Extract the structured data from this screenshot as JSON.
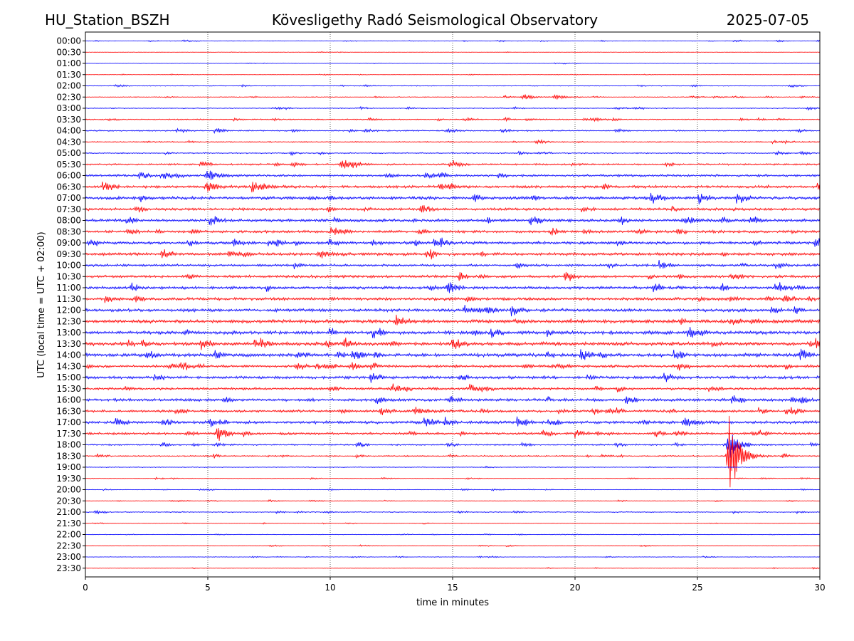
{
  "header": {
    "station": "HU_Station_BSZH",
    "observatory": "Kövesligethy Radó Seismological Observatory",
    "date": "2025-07-05"
  },
  "chart_data": {
    "type": "line",
    "subtype": "helicorder",
    "xlabel": "time in minutes",
    "ylabel": "UTC (local time = UTC + 02:00)",
    "xlim": [
      0,
      30
    ],
    "x_ticks": [
      "0",
      "5",
      "10",
      "15",
      "20",
      "25",
      "30"
    ],
    "grid": "vertical dotted lines every 5 minutes",
    "row_labels": [
      "00:00",
      "00:30",
      "01:00",
      "01:30",
      "02:00",
      "02:30",
      "03:00",
      "03:30",
      "04:00",
      "04:30",
      "05:00",
      "05:30",
      "06:00",
      "06:30",
      "07:00",
      "07:30",
      "08:00",
      "08:30",
      "09:00",
      "09:30",
      "10:00",
      "10:30",
      "11:00",
      "11:30",
      "12:00",
      "12:30",
      "13:00",
      "13:30",
      "14:00",
      "14:30",
      "15:00",
      "15:30",
      "16:00",
      "16:30",
      "17:00",
      "17:30",
      "18:00",
      "18:30",
      "19:00",
      "19:30",
      "20:00",
      "20:30",
      "21:00",
      "21:30",
      "22:00",
      "22:30",
      "23:00",
      "23:30"
    ],
    "colors": {
      "even_rows": "#0000ff",
      "odd_rows": "#ff0000"
    },
    "noise_level": [
      0.3,
      0.2,
      0.2,
      0.2,
      0.4,
      0.4,
      0.5,
      0.6,
      0.7,
      0.6,
      0.6,
      0.9,
      1.2,
      1.4,
      1.6,
      1.4,
      1.5,
      1.4,
      1.5,
      1.5,
      1.3,
      1.4,
      1.5,
      1.5,
      1.6,
      1.8,
      1.8,
      1.8,
      1.8,
      1.4,
      1.5,
      1.3,
      1.5,
      1.3,
      1.5,
      1.2,
      0.8,
      0.7,
      0.4,
      0.3,
      0.3,
      0.3,
      0.5,
      0.3,
      0.3,
      0.3,
      0.3,
      0.3
    ],
    "events": [
      {
        "row": "02:30",
        "minute": 17.9,
        "amplitude": 4
      },
      {
        "row": "02:30",
        "minute": 19.2,
        "amplitude": 4
      },
      {
        "row": "05:30",
        "minute": 10.5,
        "amplitude": 8
      },
      {
        "row": "06:00",
        "minute": 5.0,
        "amplitude": 8
      },
      {
        "row": "06:30",
        "minute": 5.0,
        "amplitude": 6
      },
      {
        "row": "08:00",
        "minute": 24.5,
        "amplitude": 5
      },
      {
        "row": "09:30",
        "minute": 9.6,
        "amplitude": 5
      },
      {
        "row": "16:30",
        "minute": 13.5,
        "amplitude": 5
      },
      {
        "row": "17:00",
        "minute": 24.5,
        "amplitude": 6
      },
      {
        "row": "17:30",
        "minute": 5.4,
        "amplitude": 5
      },
      {
        "row": "18:00",
        "minute": 26.3,
        "amplitude": 20
      },
      {
        "row": "18:30",
        "minute": 26.3,
        "amplitude": 60
      }
    ]
  }
}
